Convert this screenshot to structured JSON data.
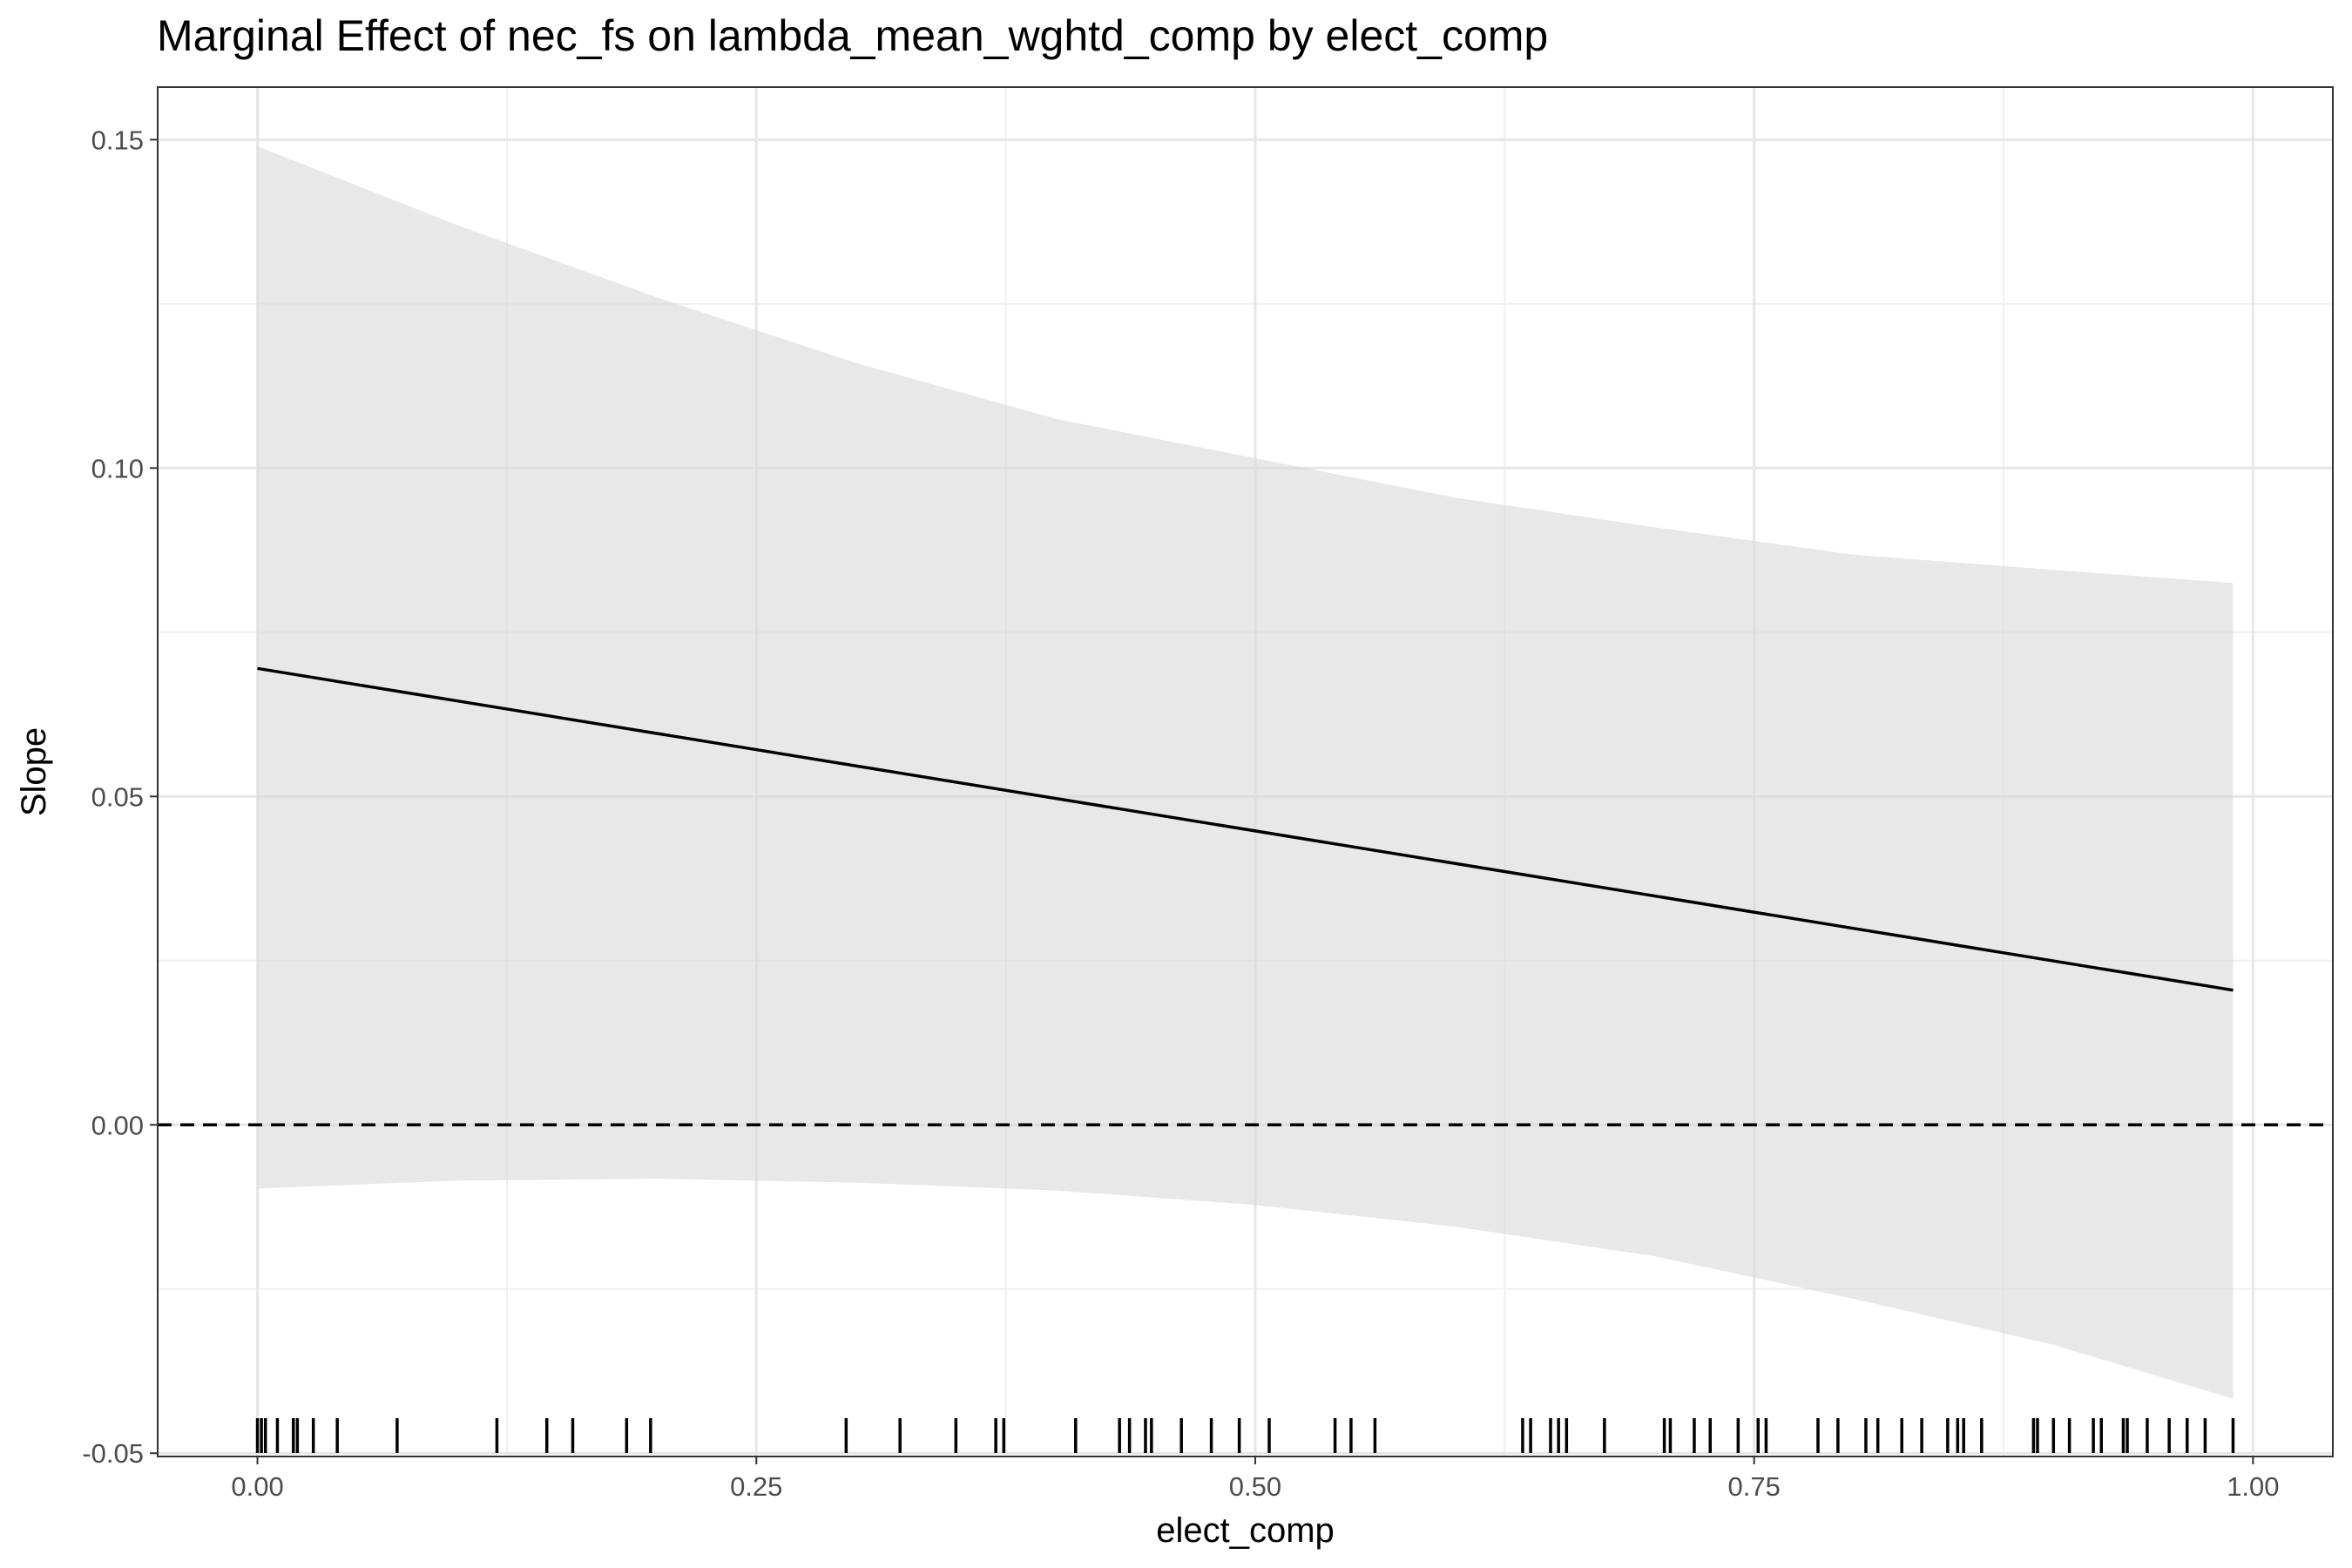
{
  "chart_data": {
    "type": "line",
    "title": "Marginal Effect of nec_fs on lambda_mean_wghtd_comp by elect_comp",
    "xlabel": "elect_comp",
    "ylabel": "Slope",
    "xlim": [
      -0.05,
      1.04
    ],
    "ylim": [
      -0.0505,
      0.158
    ],
    "x_ticks": [
      0.0,
      0.25,
      0.5,
      0.75,
      1.0
    ],
    "x_tick_labels": [
      "0.00",
      "0.25",
      "0.50",
      "0.75",
      "1.00"
    ],
    "y_ticks": [
      -0.05,
      0.0,
      0.05,
      0.1,
      0.15
    ],
    "y_tick_labels": [
      "-0.05",
      "0.00",
      "0.05",
      "0.10",
      "0.15"
    ],
    "grid": true,
    "reference_line": {
      "y": 0.0,
      "style": "dashed"
    },
    "series": [
      {
        "name": "Slope",
        "x": [
          0.0,
          0.99
        ],
        "y": [
          0.0695,
          0.0205
        ]
      }
    ],
    "confidence_band": {
      "x": [
        0.0,
        0.1,
        0.2,
        0.3,
        0.4,
        0.5,
        0.6,
        0.7,
        0.8,
        0.9,
        0.99
      ],
      "upper": [
        0.149,
        0.137,
        0.126,
        0.116,
        0.1075,
        0.1015,
        0.0955,
        0.091,
        0.0868,
        0.0845,
        0.0825
      ],
      "lower": [
        -0.0097,
        -0.0085,
        -0.0082,
        -0.0088,
        -0.01,
        -0.0122,
        -0.0155,
        -0.02,
        -0.0265,
        -0.0335,
        -0.0417
      ]
    },
    "rug_x": [
      0.0,
      0.002,
      0.004,
      0.01,
      0.018,
      0.02,
      0.028,
      0.04,
      0.07,
      0.12,
      0.145,
      0.158,
      0.185,
      0.197,
      0.295,
      0.322,
      0.35,
      0.37,
      0.374,
      0.41,
      0.432,
      0.437,
      0.445,
      0.448,
      0.463,
      0.478,
      0.492,
      0.507,
      0.54,
      0.548,
      0.56,
      0.634,
      0.638,
      0.648,
      0.652,
      0.656,
      0.675,
      0.705,
      0.708,
      0.72,
      0.728,
      0.742,
      0.752,
      0.756,
      0.782,
      0.792,
      0.806,
      0.812,
      0.824,
      0.834,
      0.847,
      0.852,
      0.855,
      0.864,
      0.89,
      0.892,
      0.9,
      0.908,
      0.92,
      0.924,
      0.935,
      0.937,
      0.947,
      0.958,
      0.967,
      0.976,
      0.99
    ]
  }
}
